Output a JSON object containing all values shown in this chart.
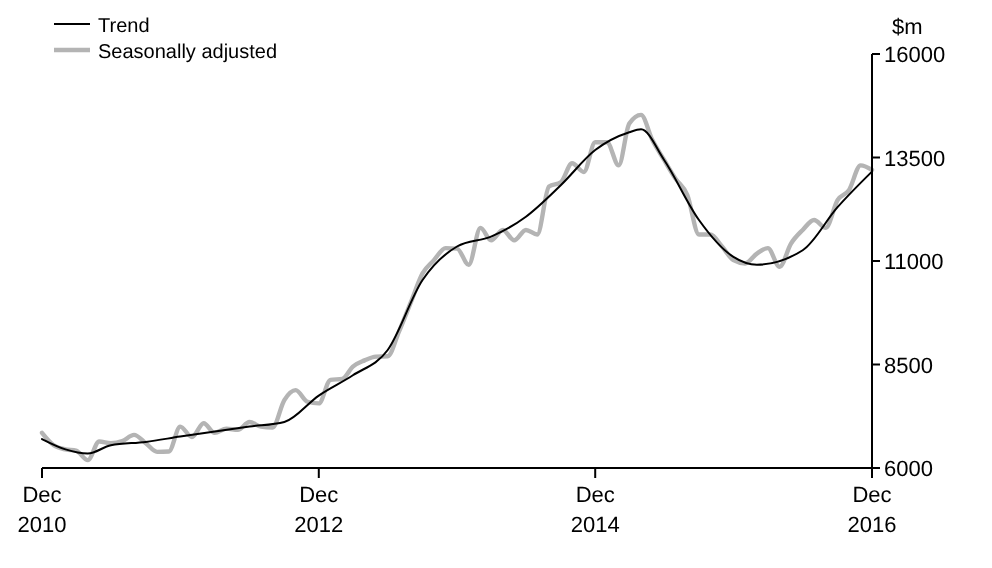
{
  "chart_data": {
    "type": "line",
    "ylabel": "$m",
    "legend": "top left",
    "grid": false,
    "marker": "none",
    "line_style": "solid",
    "xlim": [
      "2010-12",
      "2016-12"
    ],
    "xticks": [
      {
        "value": "2010-12",
        "label": "Dec\n2010"
      },
      {
        "value": "2012-12",
        "label": "Dec\n2012"
      },
      {
        "value": "2014-12",
        "label": "Dec\n2014"
      },
      {
        "value": "2016-12",
        "label": "Dec\n2016"
      }
    ],
    "ylim": [
      6000,
      16000
    ],
    "yticks": [
      6000,
      8500,
      11000,
      13500,
      16000
    ],
    "series": [
      {
        "name": "Trend",
        "color": "#000000",
        "x": [
          "2010-12",
          "2011-02",
          "2011-04",
          "2011-06",
          "2011-09",
          "2011-12",
          "2012-06",
          "2012-09",
          "2012-12",
          "2013-03",
          "2013-06",
          "2013-09",
          "2013-12",
          "2014-03",
          "2014-06",
          "2014-09",
          "2014-12",
          "2015-03",
          "2015-04",
          "2015-06",
          "2015-09",
          "2015-12",
          "2016-02",
          "2016-06",
          "2016-09",
          "2016-12"
        ],
        "values": [
          6700,
          6450,
          6350,
          6550,
          6630,
          6760,
          7000,
          7110,
          7750,
          8240,
          8850,
          10540,
          11350,
          11590,
          12070,
          12830,
          13680,
          14110,
          14180,
          13440,
          11990,
          11100,
          10910,
          11260,
          12300,
          13160
        ]
      },
      {
        "name": "Seasonally adjusted",
        "color": "#b4b4b4",
        "x": [
          "2010-12",
          "2011-01",
          "2011-02",
          "2011-03",
          "2011-04",
          "2011-05",
          "2011-06",
          "2011-07",
          "2011-08",
          "2011-09",
          "2011-10",
          "2011-11",
          "2011-12",
          "2012-01",
          "2012-02",
          "2012-03",
          "2012-04",
          "2012-05",
          "2012-06",
          "2012-07",
          "2012-08",
          "2012-09",
          "2012-10",
          "2012-11",
          "2012-12",
          "2013-01",
          "2013-02",
          "2013-03",
          "2013-04",
          "2013-05",
          "2013-06",
          "2013-07",
          "2013-08",
          "2013-09",
          "2013-10",
          "2013-11",
          "2013-12",
          "2014-01",
          "2014-02",
          "2014-03",
          "2014-04",
          "2014-05",
          "2014-06",
          "2014-07",
          "2014-08",
          "2014-09",
          "2014-10",
          "2014-11",
          "2014-12",
          "2015-01",
          "2015-02",
          "2015-03",
          "2015-04",
          "2015-05",
          "2015-06",
          "2015-07",
          "2015-08",
          "2015-09",
          "2015-10",
          "2015-11",
          "2015-12",
          "2016-01",
          "2016-02",
          "2016-03",
          "2016-04",
          "2016-05",
          "2016-06",
          "2016-07",
          "2016-08",
          "2016-09",
          "2016-10",
          "2016-11",
          "2016-12"
        ],
        "values": [
          6850,
          6550,
          6450,
          6420,
          6190,
          6640,
          6600,
          6650,
          6800,
          6600,
          6390,
          6400,
          7000,
          6750,
          7080,
          6850,
          6950,
          6920,
          7110,
          7000,
          6980,
          7640,
          7880,
          7600,
          7560,
          8130,
          8150,
          8450,
          8600,
          8690,
          8700,
          9300,
          10000,
          10700,
          11020,
          11310,
          11300,
          10910,
          11800,
          11500,
          11750,
          11500,
          11750,
          11640,
          12800,
          12900,
          13360,
          13150,
          13870,
          13870,
          13310,
          14320,
          14530,
          13920,
          13440,
          12990,
          12600,
          11640,
          11640,
          11350,
          11020,
          10940,
          11180,
          11310,
          10860,
          11420,
          11750,
          11990,
          11800,
          12470,
          12710,
          13310,
          13200
        ]
      }
    ]
  }
}
